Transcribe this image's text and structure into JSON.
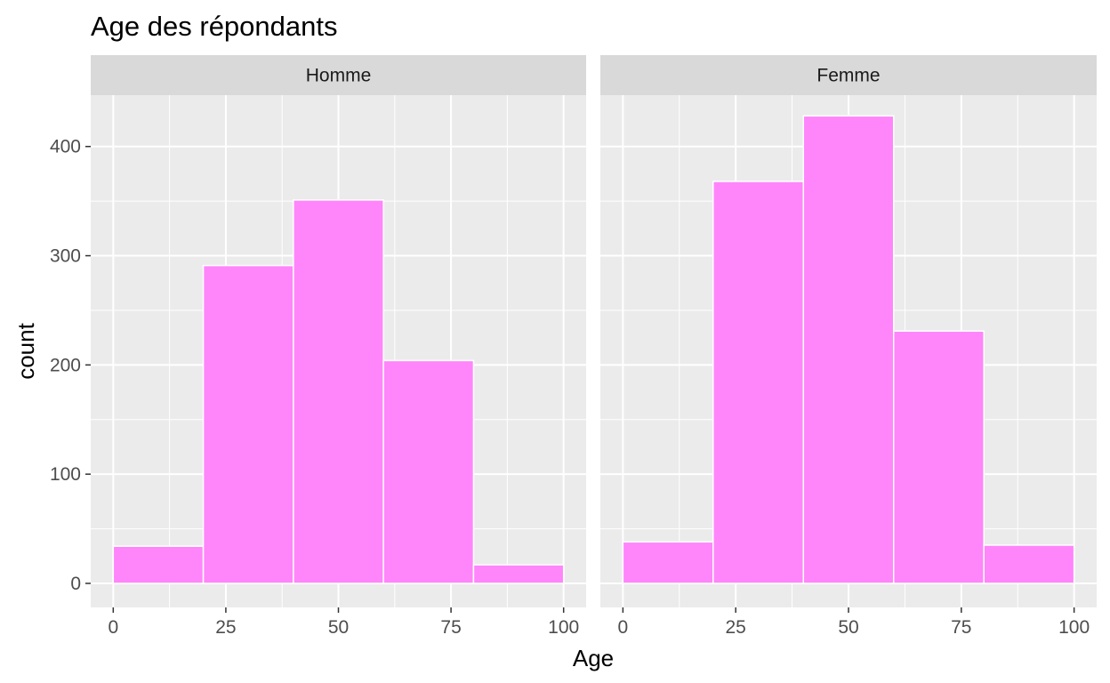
{
  "chart_data": {
    "type": "bar",
    "title": "Age des répondants",
    "xlabel": "Age",
    "ylabel": "count",
    "xlim": [
      -5,
      105
    ],
    "ylim": [
      -22,
      447
    ],
    "x_ticks": [
      0,
      25,
      50,
      75,
      100
    ],
    "y_ticks": [
      0,
      100,
      200,
      300,
      400
    ],
    "bin_edges": [
      0,
      20,
      40,
      60,
      80,
      100
    ],
    "grid": true,
    "fill_color": "#FF85FB",
    "bar_outline_color": "#FFFFFF",
    "panel_background": "#EBEBEB",
    "strip_background": "#D9D9D9",
    "facets": [
      {
        "label": "Homme",
        "values": [
          34,
          291,
          351,
          204,
          17
        ]
      },
      {
        "label": "Femme",
        "values": [
          38,
          368,
          428,
          231,
          35
        ]
      }
    ]
  }
}
